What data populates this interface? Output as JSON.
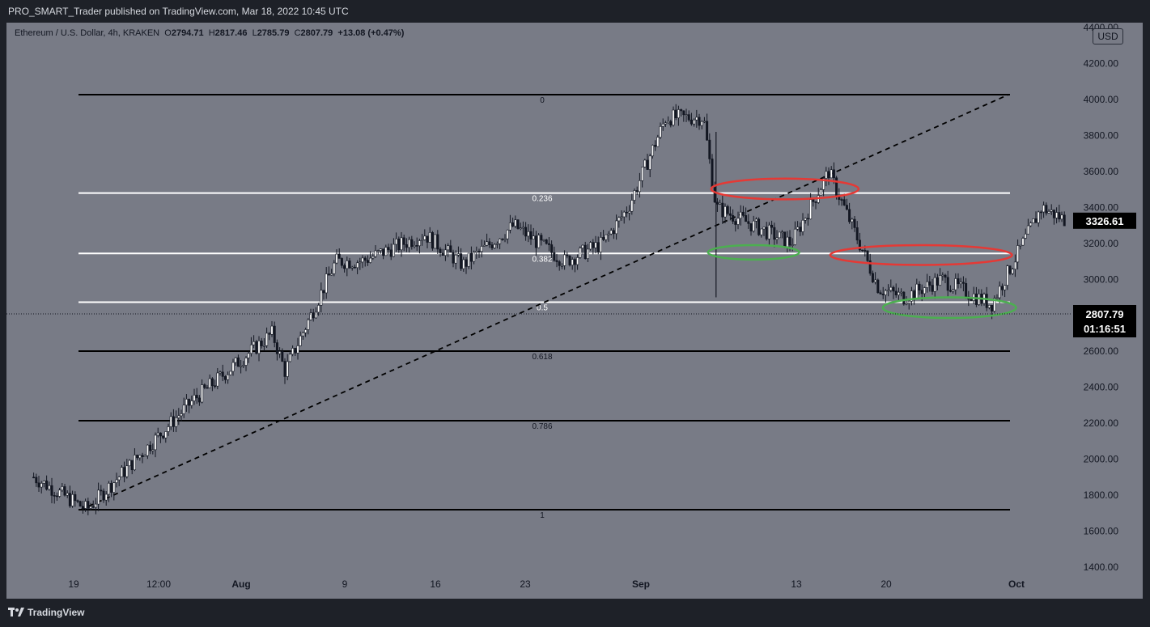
{
  "header": {
    "attribution": "PRO_SMART_Trader published on TradingView.com, Mar 18, 2022 10:45 UTC"
  },
  "legend": {
    "symbol": "Ethereum / U.S. Dollar, 4h, KRAKEN",
    "open_label": "O",
    "open": "2794.71",
    "high_label": "H",
    "high": "2817.46",
    "low_label": "L",
    "low": "2785.79",
    "close_label": "C",
    "close": "2807.79",
    "change": "+13.08 (+0.47%)"
  },
  "currency_button": "USD",
  "footer": {
    "brand": "TradingView"
  },
  "colors": {
    "background": "#787b86",
    "candle": "#ffffff",
    "wick": "#131722",
    "red_annotation": "#e53935",
    "green_annotation": "#4caf50"
  },
  "chart_data": {
    "type": "candlestick",
    "title": "",
    "ylim": [
      1350,
      4450
    ],
    "y_ticks": [
      "1400.00",
      "1600.00",
      "1800.00",
      "2000.00",
      "2200.00",
      "2400.00",
      "2600.00",
      "2800.00",
      "3000.00",
      "3200.00",
      "3400.00",
      "3600.00",
      "3800.00",
      "4000.00",
      "4200.00",
      "4400.00"
    ],
    "x_ticks": [
      "19",
      "12:00",
      "Aug",
      "9",
      "16",
      "23",
      "Sep",
      "13",
      "20",
      "Oct"
    ],
    "x_ticks_bold": [
      "Aug",
      "Sep",
      "Oct"
    ],
    "fibonacci": {
      "levels": [
        {
          "label": "0",
          "price": 4027
        },
        {
          "label": "0.236",
          "price": 3480
        },
        {
          "label": "0.382",
          "price": 3144
        },
        {
          "label": "0.5",
          "price": 2873
        },
        {
          "label": "0.618",
          "price": 2601
        },
        {
          "label": "0.786",
          "price": 2214
        },
        {
          "label": "1",
          "price": 1719
        }
      ]
    },
    "trend_line": {
      "from_price": 1719,
      "to_price": 4027
    },
    "price_anchors": [
      {
        "date": "Jul 16",
        "price": 1900
      },
      {
        "date": "Jul 20",
        "price": 1720
      },
      {
        "date": "Jul 28",
        "price": 2330
      },
      {
        "date": "Aug 3",
        "price": 2700
      },
      {
        "date": "Aug 4",
        "price": 2490
      },
      {
        "date": "Aug 8",
        "price": 3100
      },
      {
        "date": "Aug 10",
        "price": 3100
      },
      {
        "date": "Aug 15",
        "price": 3250
      },
      {
        "date": "Aug 18",
        "price": 3080
      },
      {
        "date": "Aug 22",
        "price": 3300
      },
      {
        "date": "Aug 26",
        "price": 3100
      },
      {
        "date": "Aug 29",
        "price": 3200
      },
      {
        "date": "Aug 31",
        "price": 3400
      },
      {
        "date": "Sep 3",
        "price": 3900
      },
      {
        "date": "Sep 6",
        "price": 3900
      },
      {
        "date": "Sep 7",
        "price": 3400
      },
      {
        "date": "Sep 10",
        "price": 3300
      },
      {
        "date": "Sep 13",
        "price": 3200
      },
      {
        "date": "Sep 16",
        "price": 3600
      },
      {
        "date": "Sep 20",
        "price": 2950
      },
      {
        "date": "Sep 22",
        "price": 2900
      },
      {
        "date": "Sep 25",
        "price": 3000
      },
      {
        "date": "Sep 29",
        "price": 2860
      },
      {
        "date": "Oct 3",
        "price": 3400
      },
      {
        "date": "Oct 5",
        "price": 3326
      }
    ],
    "current_price": {
      "value": "2807.79",
      "countdown": "01:16:51"
    },
    "last_price_tag": "3326.61"
  }
}
